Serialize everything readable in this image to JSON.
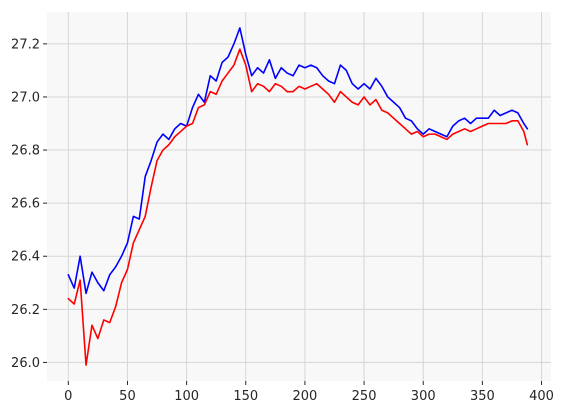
{
  "chart_data": {
    "type": "line",
    "title": "",
    "xlabel": "",
    "ylabel": "",
    "xlim": [
      -18,
      408
    ],
    "ylim": [
      25.93,
      27.32
    ],
    "grid": true,
    "legend": "none",
    "background_color": "#f8f8f8",
    "grid_color": "#d6d6d6",
    "x_ticks": [
      0,
      50,
      100,
      150,
      200,
      250,
      300,
      350,
      400
    ],
    "x_tick_labels": [
      "0",
      "50",
      "100",
      "150",
      "200",
      "250",
      "300",
      "350",
      "400"
    ],
    "y_ticks": [
      26.0,
      26.2,
      26.4,
      26.6,
      26.8,
      27.0,
      27.2
    ],
    "y_tick_labels": [
      "26.0",
      "26.2",
      "26.4",
      "26.6",
      "26.8",
      "27.0",
      "27.2"
    ],
    "x": [
      0,
      5,
      10,
      15,
      20,
      25,
      30,
      35,
      40,
      45,
      50,
      55,
      60,
      65,
      70,
      75,
      80,
      85,
      90,
      95,
      100,
      105,
      110,
      115,
      120,
      125,
      130,
      135,
      140,
      145,
      150,
      155,
      160,
      165,
      170,
      175,
      180,
      185,
      190,
      195,
      200,
      205,
      210,
      215,
      220,
      225,
      230,
      235,
      240,
      245,
      250,
      255,
      260,
      265,
      270,
      275,
      280,
      285,
      290,
      295,
      300,
      305,
      310,
      315,
      320,
      325,
      330,
      335,
      340,
      345,
      350,
      355,
      360,
      365,
      370,
      375,
      380,
      385,
      388
    ],
    "series": [
      {
        "color": "#0000ff",
        "values": [
          26.33,
          26.28,
          26.4,
          26.26,
          26.34,
          26.3,
          26.27,
          26.33,
          26.36,
          26.4,
          26.45,
          26.55,
          26.54,
          26.7,
          26.76,
          26.83,
          26.86,
          26.84,
          26.88,
          26.9,
          26.89,
          26.96,
          27.01,
          26.98,
          27.08,
          27.06,
          27.13,
          27.15,
          27.2,
          27.26,
          27.16,
          27.08,
          27.11,
          27.09,
          27.14,
          27.07,
          27.11,
          27.09,
          27.08,
          27.12,
          27.11,
          27.12,
          27.11,
          27.08,
          27.06,
          27.05,
          27.12,
          27.1,
          27.05,
          27.03,
          27.05,
          27.03,
          27.07,
          27.04,
          27.0,
          26.98,
          26.96,
          26.92,
          26.91,
          26.88,
          26.86,
          26.88,
          26.87,
          26.86,
          26.85,
          26.89,
          26.91,
          26.92,
          26.9,
          26.92,
          26.92,
          26.92,
          26.95,
          26.93,
          26.94,
          26.95,
          26.94,
          26.9,
          26.88
        ]
      },
      {
        "color": "#ff0000",
        "values": [
          26.24,
          26.22,
          26.31,
          25.99,
          26.14,
          26.09,
          26.16,
          26.15,
          26.21,
          26.3,
          26.35,
          26.45,
          26.5,
          26.55,
          26.66,
          26.76,
          26.8,
          26.82,
          26.85,
          26.87,
          26.89,
          26.9,
          26.96,
          26.97,
          27.02,
          27.01,
          27.06,
          27.09,
          27.12,
          27.18,
          27.12,
          27.02,
          27.05,
          27.04,
          27.02,
          27.05,
          27.04,
          27.02,
          27.02,
          27.04,
          27.03,
          27.04,
          27.05,
          27.03,
          27.01,
          26.98,
          27.02,
          27.0,
          26.98,
          26.97,
          27.0,
          26.97,
          26.99,
          26.95,
          26.94,
          26.92,
          26.9,
          26.88,
          26.86,
          26.87,
          26.85,
          26.86,
          26.86,
          26.85,
          26.84,
          26.86,
          26.87,
          26.88,
          26.87,
          26.88,
          26.89,
          26.9,
          26.9,
          26.9,
          26.9,
          26.91,
          26.91,
          26.87,
          26.82
        ]
      }
    ]
  }
}
